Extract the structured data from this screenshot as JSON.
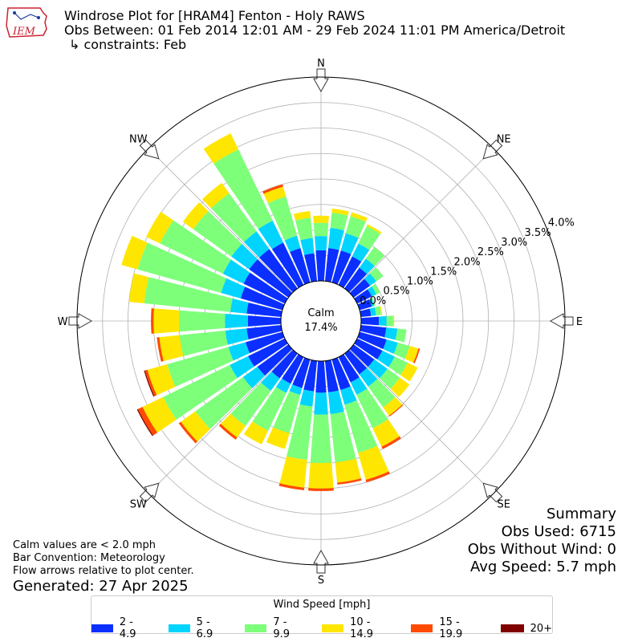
{
  "title": {
    "line1": "Windrose Plot for [HRAM4] Fenton - Holy RAWS",
    "line2": "Obs Between: 01 Feb 2014 12:01 AM - 29 Feb 2024 11:01 PM America/Detroit",
    "line3": "↳ constraints: Feb"
  },
  "logo_text": "IEM",
  "summary": {
    "heading": "Summary",
    "obs_used": "Obs Used: 6715",
    "obs_without_wind": "Obs Without Wind: 0",
    "avg_speed": "Avg Speed: 5.7 mph"
  },
  "notes": {
    "calm": "Calm values are < 2.0 mph",
    "convention": "Bar Convention: Meteorology",
    "flow": "Flow arrows relative to plot center."
  },
  "generated": "Generated: 27 Apr 2025",
  "legend": {
    "title": "Wind Speed [mph]",
    "items": [
      {
        "label": "2 - 4.9",
        "color": "#0a2fff"
      },
      {
        "label": "5 - 6.9",
        "color": "#00d4ff"
      },
      {
        "label": "7 - 9.9",
        "color": "#7dff7a"
      },
      {
        "label": "10 - 14.9",
        "color": "#ffe600"
      },
      {
        "label": "15 - 19.9",
        "color": "#ff4a00"
      },
      {
        "label": "20+",
        "color": "#800000"
      }
    ]
  },
  "chart_data": {
    "type": "windrose",
    "calm": {
      "label": "Calm",
      "value": "17.4%"
    },
    "directions": [
      "N",
      "NE",
      "E",
      "SE",
      "S",
      "SW",
      "W",
      "NW"
    ],
    "radial_ticks": [
      "0.0%",
      "0.5%",
      "1.0%",
      "1.5%",
      "2.0%",
      "2.5%",
      "3.0%",
      "3.5%",
      "4.0%"
    ],
    "rmax": 4.0,
    "sector_count": 36,
    "bins": [
      "2 - 4.9",
      "5 - 6.9",
      "7 - 9.9",
      "10 - 14.9",
      "15 - 19.9",
      "20+"
    ],
    "sectors": [
      {
        "dir": 0,
        "cum": [
          0.6,
          0.88,
          1.14,
          1.28,
          1.28,
          1.28
        ]
      },
      {
        "dir": 10,
        "cum": [
          0.65,
          1.05,
          1.35,
          1.43,
          1.43,
          1.43
        ]
      },
      {
        "dir": 20,
        "cum": [
          0.65,
          1.0,
          1.35,
          1.43,
          1.43,
          1.43
        ]
      },
      {
        "dir": 30,
        "cum": [
          0.62,
          0.9,
          1.28,
          1.32,
          1.32,
          1.32
        ]
      },
      {
        "dir": 40,
        "cum": [
          0.5,
          0.72,
          1.0,
          1.0,
          1.0,
          1.0
        ]
      },
      {
        "dir": 50,
        "cum": [
          0.4,
          0.55,
          0.72,
          0.72,
          0.72,
          0.72
        ]
      },
      {
        "dir": 60,
        "cum": [
          0.32,
          0.42,
          0.5,
          0.5,
          0.5,
          0.5
        ]
      },
      {
        "dir": 70,
        "cum": [
          0.25,
          0.3,
          0.32,
          0.32,
          0.32,
          0.32
        ]
      },
      {
        "dir": 80,
        "cum": [
          0.2,
          0.3,
          0.4,
          0.42,
          0.42,
          0.42
        ]
      },
      {
        "dir": 90,
        "cum": [
          0.35,
          0.5,
          0.63,
          0.65,
          0.65,
          0.65
        ]
      },
      {
        "dir": 100,
        "cum": [
          0.5,
          0.72,
          0.9,
          0.9,
          0.9,
          0.9
        ]
      },
      {
        "dir": 110,
        "cum": [
          0.55,
          0.78,
          1.02,
          1.2,
          1.23,
          1.23
        ]
      },
      {
        "dir": 120,
        "cum": [
          0.55,
          0.82,
          1.1,
          1.32,
          1.32,
          1.32
        ]
      },
      {
        "dir": 130,
        "cum": [
          0.5,
          0.82,
          1.12,
          1.35,
          1.35,
          1.35
        ]
      },
      {
        "dir": 140,
        "cum": [
          0.5,
          0.8,
          1.3,
          1.5,
          1.52,
          1.52
        ]
      },
      {
        "dir": 150,
        "cum": [
          0.55,
          0.82,
          1.55,
          1.95,
          2.0,
          2.0
        ]
      },
      {
        "dir": 160,
        "cum": [
          0.62,
          0.92,
          1.9,
          2.45,
          2.5,
          2.5
        ]
      },
      {
        "dir": 170,
        "cum": [
          0.62,
          1.05,
          2.0,
          2.4,
          2.44,
          2.44
        ]
      },
      {
        "dir": 180,
        "cum": [
          0.62,
          1.05,
          2.0,
          2.5,
          2.55,
          2.55
        ]
      },
      {
        "dir": 190,
        "cum": [
          0.6,
          0.9,
          1.95,
          2.5,
          2.55,
          2.55
        ]
      },
      {
        "dir": 200,
        "cum": [
          0.58,
          0.72,
          1.5,
          1.82,
          1.82,
          1.82
        ]
      },
      {
        "dir": 210,
        "cum": [
          0.58,
          0.78,
          1.6,
          1.9,
          1.9,
          1.9
        ]
      },
      {
        "dir": 220,
        "cum": [
          0.6,
          0.9,
          1.75,
          2.03,
          2.08,
          2.08
        ]
      },
      {
        "dir": 230,
        "cum": [
          0.75,
          1.1,
          2.25,
          2.6,
          2.65,
          2.65
        ]
      },
      {
        "dir": 240,
        "cum": [
          0.8,
          1.2,
          2.65,
          3.1,
          3.2,
          3.22
        ]
      },
      {
        "dir": 250,
        "cum": [
          0.75,
          1.1,
          2.35,
          2.75,
          2.8,
          2.82
        ]
      },
      {
        "dir": 260,
        "cum": [
          0.68,
          1.1,
          2.0,
          2.4,
          2.45,
          2.45
        ]
      },
      {
        "dir": 270,
        "cum": [
          0.65,
          1.1,
          2.0,
          2.5,
          2.55,
          2.55
        ]
      },
      {
        "dir": 280,
        "cum": [
          0.68,
          1.0,
          2.7,
          3.0,
          3.0,
          3.0
        ]
      },
      {
        "dir": 290,
        "cum": [
          0.85,
          1.25,
          2.95,
          3.28,
          3.28,
          3.28
        ]
      },
      {
        "dir": 300,
        "cum": [
          0.9,
          1.35,
          2.72,
          3.02,
          3.02,
          3.02
        ]
      },
      {
        "dir": 310,
        "cum": [
          0.95,
          1.38,
          2.3,
          2.55,
          2.55,
          2.55
        ]
      },
      {
        "dir": 320,
        "cum": [
          0.95,
          1.38,
          2.3,
          2.55,
          2.55,
          2.55
        ]
      },
      {
        "dir": 330,
        "cum": [
          0.92,
          1.4,
          2.95,
          3.3,
          3.3,
          3.3
        ]
      },
      {
        "dir": 340,
        "cum": [
          0.7,
          0.95,
          1.75,
          1.95,
          2.0,
          2.0
        ]
      },
      {
        "dir": 350,
        "cum": [
          0.55,
          0.85,
          1.25,
          1.38,
          1.38,
          1.38
        ]
      }
    ]
  }
}
